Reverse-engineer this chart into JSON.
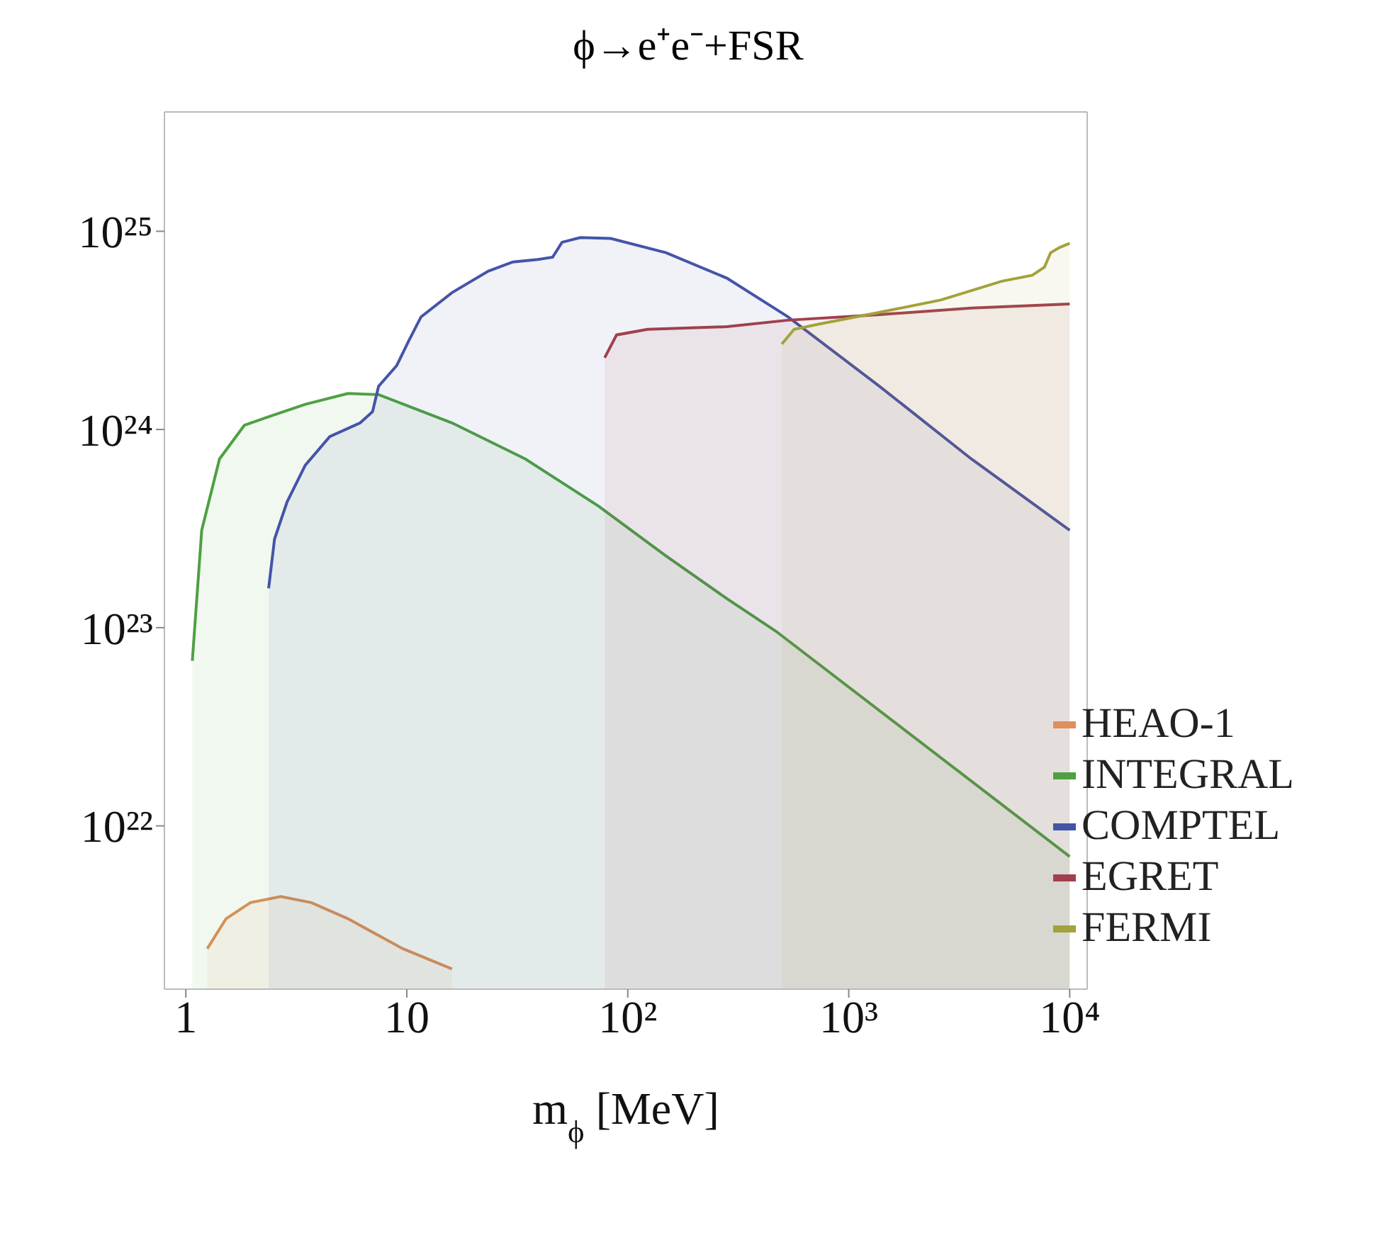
{
  "chart_data": {
    "type": "area",
    "title": "ϕ→e⁺e⁻+FSR",
    "xlabel": "m$_{ϕ}$ [MeV]",
    "log": "xy",
    "xlim": [
      0.8,
      12000
    ],
    "ylim": [
      1.5e+21,
      4e+25
    ],
    "xticks": [
      1,
      10,
      {
        "value": 100,
        "label": "10²"
      },
      {
        "value": 1000,
        "label": "10³"
      },
      {
        "value": 10000,
        "label": "10⁴"
      }
    ],
    "yticks": [
      {
        "value": 1e+22,
        "label": "10²²"
      },
      {
        "value": 1e+23,
        "label": "10²³"
      },
      {
        "value": 1e+24,
        "label": "10²⁴"
      },
      {
        "value": 1e+25,
        "label": "10²⁵"
      }
    ],
    "legend": "bottom right",
    "grid": false,
    "series": [
      {
        "name": "HEAO-1",
        "color": "#e0905a",
        "x": [
          1.25,
          1.52,
          1.96,
          2.69,
          3.7,
          5.42,
          9.6,
          16
        ],
        "values": [
          2.4e+21,
          3.4e+21,
          4.1e+21,
          4.4e+21,
          4.1e+21,
          3.4e+21,
          2.4e+21,
          1.9e+21
        ]
      },
      {
        "name": "INTEGRAL",
        "color": "#4fa043",
        "x": [
          1.07,
          1.18,
          1.42,
          1.84,
          2.37,
          3.47,
          5.42,
          7.45,
          16,
          34.4,
          73.8,
          149,
          281,
          468,
          10000
        ],
        "values": [
          6.8e+22,
          3.1e+23,
          7.1e+23,
          1.05e+24,
          1.16e+24,
          1.34e+24,
          1.52e+24,
          1.5e+24,
          1.08e+24,
          7.1e+23,
          4.1e+23,
          2.3e+23,
          1.4e+23,
          9.6e+22,
          7e+21
        ]
      },
      {
        "name": "COMPTEL",
        "color": "#4454a8",
        "x": [
          2.37,
          2.52,
          2.87,
          3.47,
          4.48,
          6.15,
          7,
          7.45,
          9,
          10.2,
          11.6,
          16,
          23.4,
          30.2,
          39,
          45.7,
          50.4,
          61,
          83.7,
          149,
          281,
          531,
          1380,
          3590,
          10000
        ],
        "values": [
          1.58e+23,
          2.8e+23,
          4.3e+23,
          6.6e+23,
          9.2e+23,
          1.08e+24,
          1.23e+24,
          1.65e+24,
          2.1e+24,
          2.8e+24,
          3.7e+24,
          4.9e+24,
          6.3e+24,
          7e+24,
          7.2e+24,
          7.4e+24,
          8.8e+24,
          9.3e+24,
          9.2e+24,
          7.8e+24,
          5.8e+24,
          3.7e+24,
          1.65e+24,
          7.1e+23,
          3.1e+23
        ]
      },
      {
        "name": "EGRET",
        "color": "#a0404e",
        "x": [
          78.6,
          89,
          123,
          281,
          531,
          1380,
          3590,
          10000
        ],
        "values": [
          2.3e+24,
          3e+24,
          3.2e+24,
          3.3e+24,
          3.56e+24,
          3.8e+24,
          4.1e+24,
          4.3e+24
        ]
      },
      {
        "name": "FERMI",
        "color": "#a3a23c",
        "x": [
          498,
          566,
          730,
          1380,
          2610,
          4930,
          6780,
          7690,
          8200,
          9030,
          10000
        ],
        "values": [
          2.7e+24,
          3.2e+24,
          3.4e+24,
          3.9e+24,
          4.5e+24,
          5.6e+24,
          6e+24,
          6.6e+24,
          7.8e+24,
          8.3e+24,
          8.7e+24
        ]
      }
    ]
  }
}
